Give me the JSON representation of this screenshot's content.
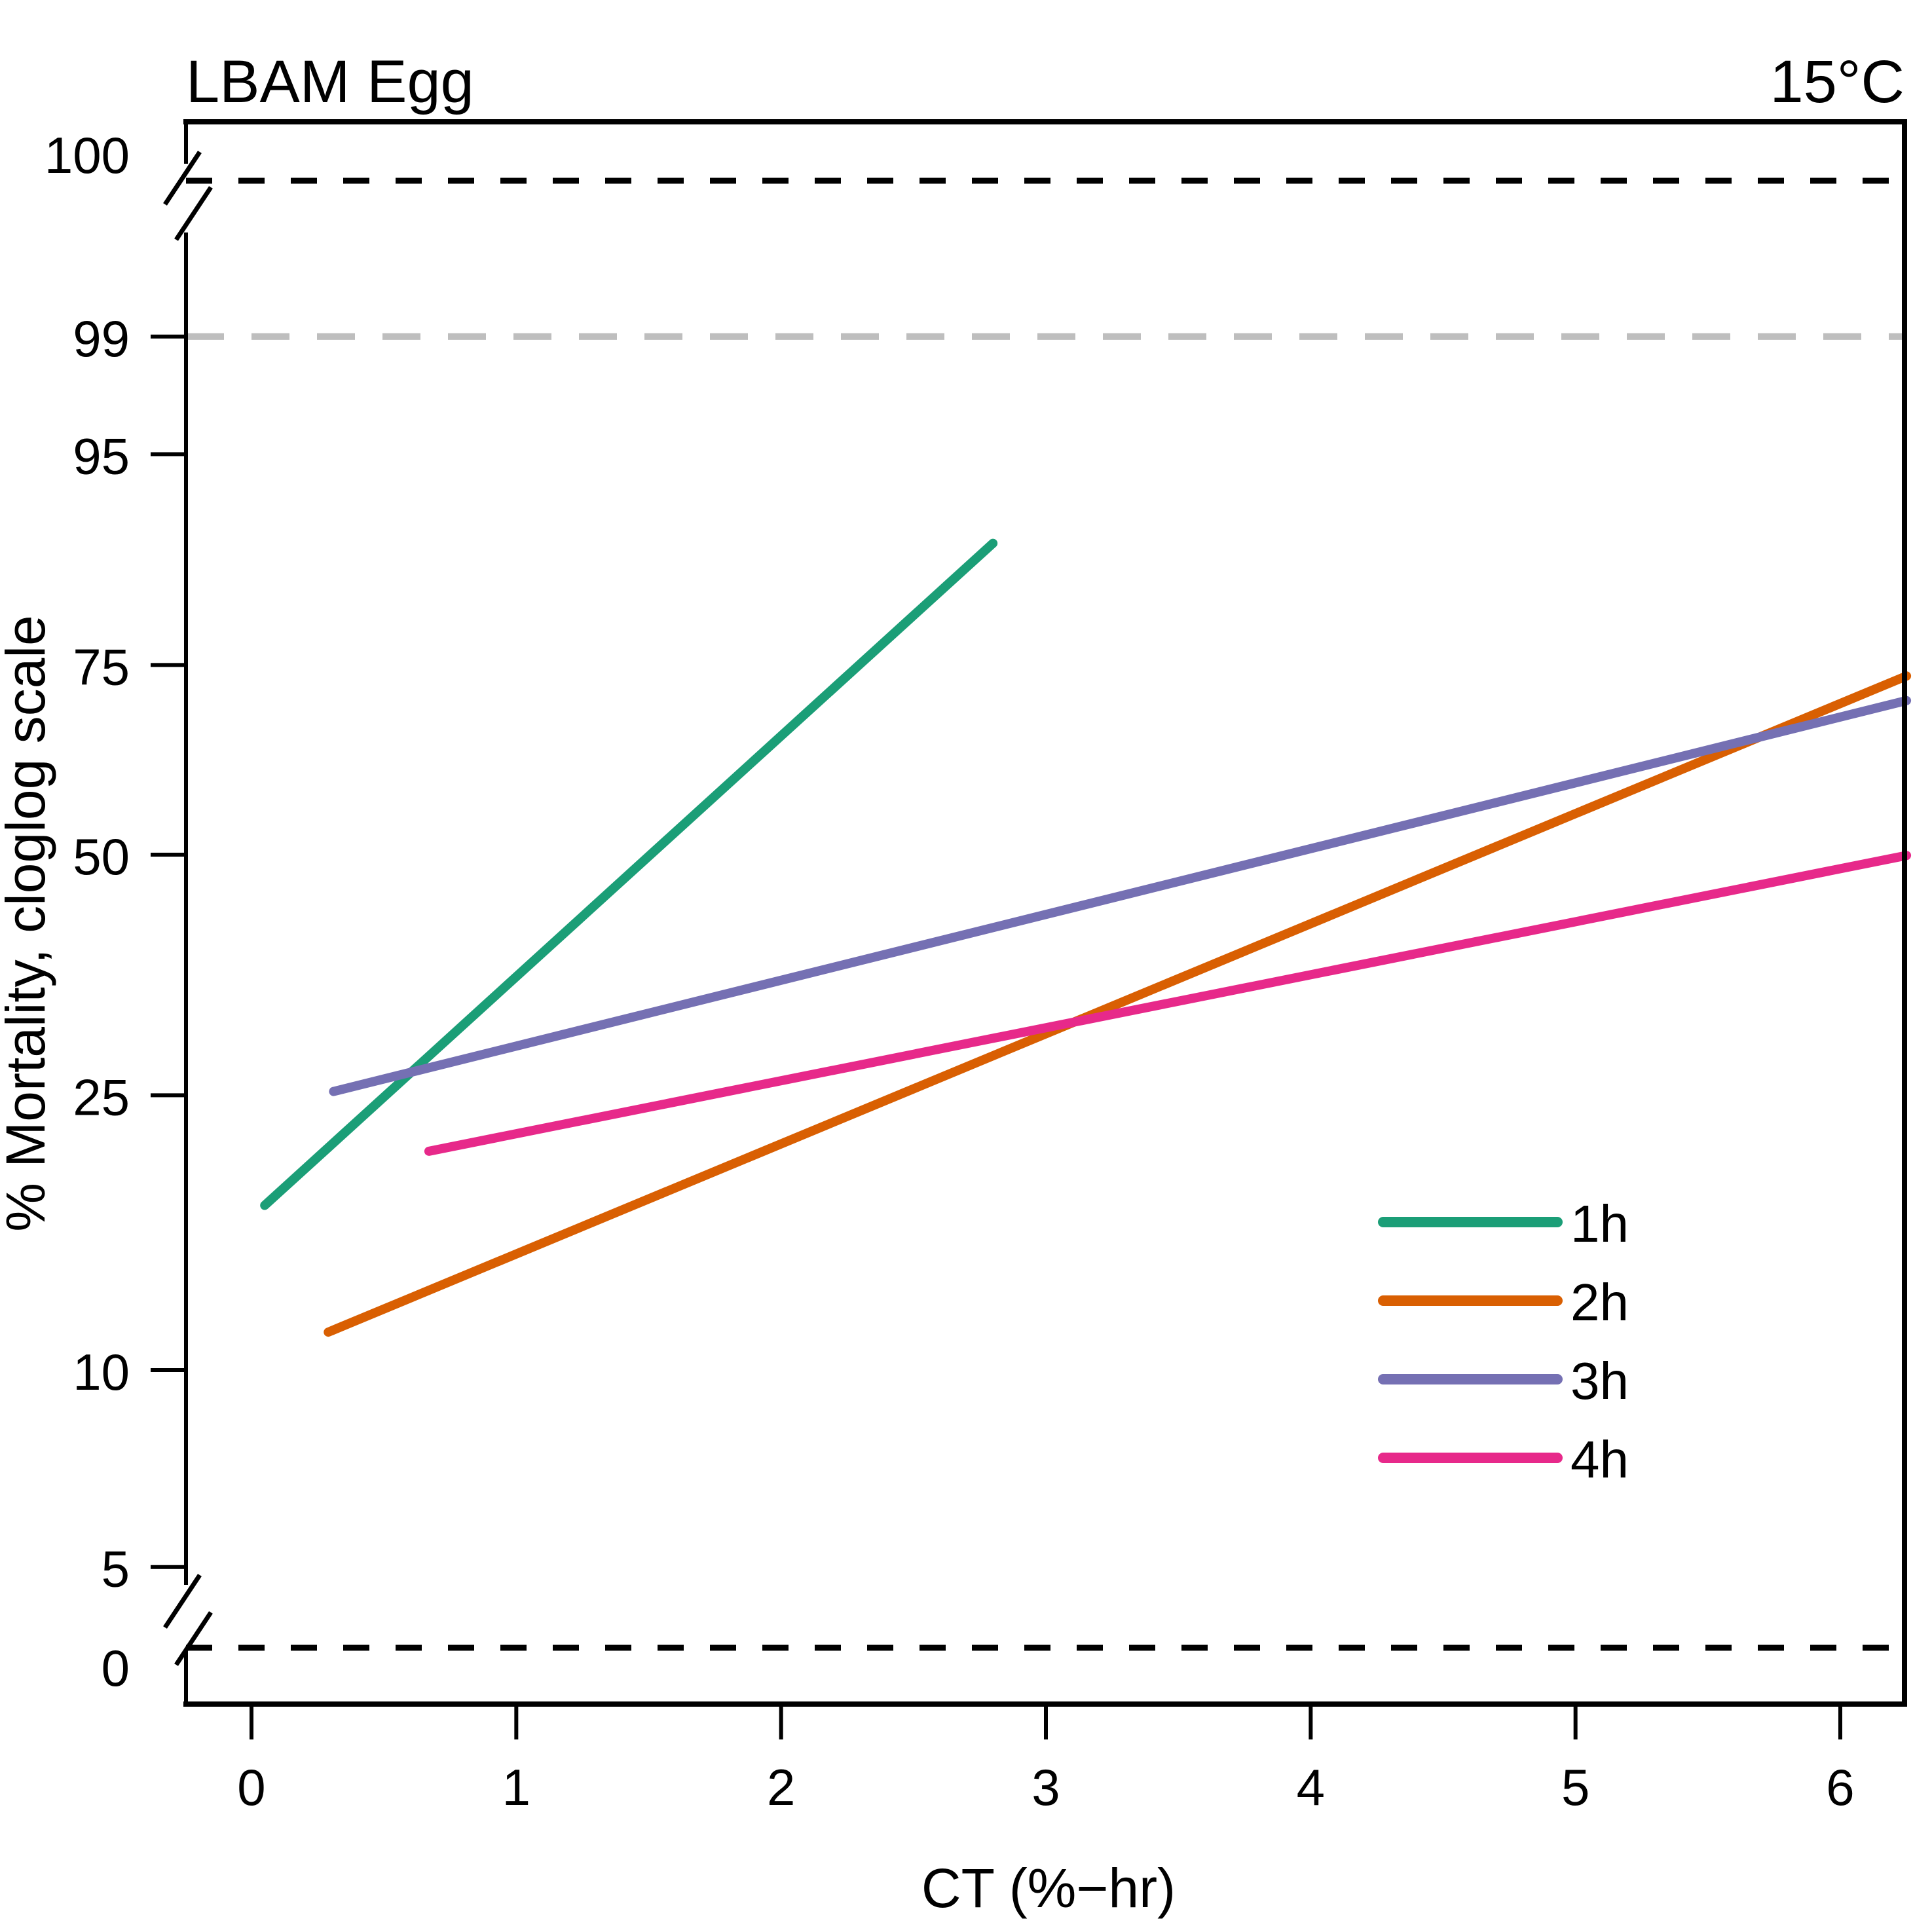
{
  "chart_data": {
    "type": "line",
    "title": "LBAM Egg",
    "subtitle": "15°C",
    "xlabel": "CT (%−hr)",
    "ylabel": "% Mortality, cloglog scale",
    "xlim": [
      -0.25,
      6.25
    ],
    "x_ticks": [
      0,
      1,
      2,
      3,
      4,
      5,
      6
    ],
    "y_scale": "cloglog",
    "y_ticks": [
      {
        "value": 5,
        "label": "5"
      },
      {
        "value": 10,
        "label": "10"
      },
      {
        "value": 25,
        "label": "25"
      },
      {
        "value": 50,
        "label": "50"
      },
      {
        "value": 75,
        "label": "75"
      },
      {
        "value": 95,
        "label": "95"
      },
      {
        "value": 99,
        "label": "99"
      }
    ],
    "y_break_labels": {
      "top": "100",
      "bottom": "0"
    },
    "reference_lines": [
      {
        "value": 99,
        "color": "#BEBEBE",
        "style": "dashed"
      },
      {
        "value": 100,
        "color": "#000000",
        "style": "dashed"
      },
      {
        "value": 0,
        "color": "#000000",
        "style": "dashed"
      }
    ],
    "grid": false,
    "legend_position": "bottom-right",
    "series": [
      {
        "name": "1h",
        "color": "#1B9E77",
        "x": [
          0.05,
          2.8
        ],
        "y": [
          17.5,
          88.5
        ]
      },
      {
        "name": "2h",
        "color": "#D95F02",
        "x": [
          0.29,
          6.25
        ],
        "y": [
          11.4,
          73.6
        ]
      },
      {
        "name": "3h",
        "color": "#7570B3",
        "x": [
          0.31,
          6.25
        ],
        "y": [
          25.3,
          70.4
        ]
      },
      {
        "name": "4h",
        "color": "#E7298A",
        "x": [
          0.67,
          6.25
        ],
        "y": [
          20.9,
          49.9
        ]
      }
    ]
  }
}
